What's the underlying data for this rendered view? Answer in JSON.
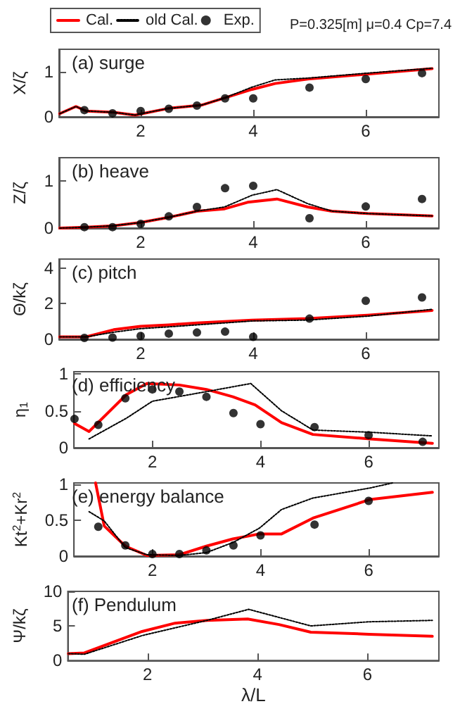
{
  "chart_data": [
    {
      "type": "line",
      "ylabel": "X/ζ",
      "annotations": [
        "(a) surge",
        "P=0.325[m] μ=0.4 Cp=7.4"
      ],
      "legend": "top left",
      "xlim": [
        0.55,
        7.3
      ],
      "xticks": [
        2,
        4,
        6
      ],
      "ylim": [
        0,
        1.5
      ],
      "yticks": [
        0,
        1
      ],
      "series": [
        {
          "name": "Cal.",
          "color": "#ff0000",
          "line_style": "solid",
          "x": [
            0.56,
            0.85,
            1.03,
            1.52,
            1.9,
            2.5,
            3.08,
            3.49,
            3.98,
            4.39,
            4.97,
            6.03,
            7.18
          ],
          "values": [
            0.07,
            0.23,
            0.13,
            0.1,
            0.04,
            0.19,
            0.26,
            0.42,
            0.61,
            0.74,
            0.84,
            0.95,
            1.07
          ]
        },
        {
          "name": "old Cal.",
          "color": "#000000",
          "line_style": "dotted",
          "x": [
            0.56,
            0.85,
            1.03,
            1.52,
            1.9,
            2.5,
            3.08,
            3.49,
            3.98,
            4.39,
            4.97,
            6.03,
            7.18
          ],
          "values": [
            0.07,
            0.23,
            0.13,
            0.1,
            0.04,
            0.19,
            0.26,
            0.42,
            0.66,
            0.82,
            0.86,
            0.97,
            1.08
          ]
        },
        {
          "name": "Exp.",
          "type": "scatter",
          "marker": "circle",
          "color": "#000000",
          "x": [
            1,
            1.5,
            2,
            2.5,
            3,
            3.5,
            4,
            5,
            6,
            7
          ],
          "values": [
            0.15,
            0.08,
            0.13,
            0.18,
            0.25,
            0.41,
            0.41,
            0.65,
            0.84,
            0.97
          ]
        }
      ]
    },
    {
      "type": "line",
      "ylabel": "Z/ζ",
      "annotations": [
        "(b) heave"
      ],
      "xlim": [
        0.55,
        7.3
      ],
      "xticks": [
        2,
        4,
        6
      ],
      "ylim": [
        0,
        1.5
      ],
      "yticks": [
        0,
        1
      ],
      "series": [
        {
          "color": "#ff0000",
          "line_style": "solid",
          "x": [
            0.56,
            1.03,
            1.52,
            2,
            2.5,
            3,
            3.49,
            3.9,
            4.42,
            4.97,
            5.4,
            6.03,
            7.18
          ],
          "values": [
            0,
            0.02,
            0.05,
            0.12,
            0.23,
            0.36,
            0.41,
            0.55,
            0.62,
            0.45,
            0.36,
            0.31,
            0.26
          ]
        },
        {
          "color": "#000000",
          "line_style": "dotted",
          "x": [
            0.56,
            1.03,
            1.52,
            2,
            2.5,
            3,
            3.49,
            3.98,
            4.42,
            4.97,
            5.4,
            6.03,
            7.18
          ],
          "values": [
            0,
            0.02,
            0.05,
            0.12,
            0.23,
            0.36,
            0.45,
            0.7,
            0.82,
            0.52,
            0.36,
            0.31,
            0.26
          ]
        },
        {
          "type": "scatter",
          "marker": "circle",
          "color": "#000000",
          "x": [
            1,
            1.5,
            2,
            2.5,
            3,
            3.5,
            4,
            5,
            6,
            7
          ],
          "values": [
            0.02,
            0.02,
            0.09,
            0.25,
            0.45,
            0.85,
            0.9,
            0.21,
            0.46,
            0.62
          ]
        }
      ]
    },
    {
      "type": "line",
      "ylabel": "Θ/kζ",
      "annotations": [
        "(c) pitch"
      ],
      "xlim": [
        0.55,
        7.3
      ],
      "xticks": [
        2,
        4,
        6
      ],
      "ylim": [
        0,
        4.5
      ],
      "yticks": [
        0,
        2,
        4
      ],
      "series": [
        {
          "color": "#ff0000",
          "line_style": "solid",
          "x": [
            0.56,
            1.03,
            1.52,
            2,
            2.5,
            3,
            3.98,
            4.97,
            6.03,
            7.18
          ],
          "values": [
            0.14,
            0.14,
            0.54,
            0.73,
            0.81,
            0.92,
            1.08,
            1.16,
            1.35,
            1.62
          ]
        },
        {
          "color": "#000000",
          "line_style": "dotted",
          "x": [
            0.56,
            1.03,
            1.52,
            2,
            2.5,
            3,
            3.98,
            4.97,
            6.03,
            7.18
          ],
          "values": [
            0.14,
            0.14,
            0.4,
            0.6,
            0.7,
            0.81,
            1.03,
            1.08,
            1.3,
            1.68
          ]
        },
        {
          "type": "scatter",
          "marker": "circle",
          "color": "#000000",
          "x": [
            1,
            1.5,
            2,
            2.5,
            3,
            3.5,
            4,
            5,
            6,
            7
          ],
          "values": [
            0.08,
            0.1,
            0.19,
            0.32,
            0.38,
            0.43,
            0.14,
            1.16,
            2.16,
            2.35
          ]
        }
      ]
    },
    {
      "type": "line",
      "ylabel": "η$_{1}$",
      "annotations": [
        "(d) efficiency"
      ],
      "xlim": [
        0.55,
        7.3
      ],
      "xticks": [
        2,
        4,
        6
      ],
      "ylim": [
        0,
        1.03
      ],
      "yticks": [
        0,
        0.5,
        1
      ],
      "series": [
        {
          "color": "#ff0000",
          "line_style": "solid",
          "x": [
            0.56,
            0.83,
            1.52,
            1.9,
            2.5,
            3,
            3.49,
            3.9,
            4.39,
            4.97,
            6.03,
            7.18
          ],
          "values": [
            0.33,
            0.22,
            0.72,
            0.87,
            0.85,
            0.79,
            0.69,
            0.58,
            0.34,
            0.18,
            0.12,
            0.06
          ]
        },
        {
          "color": "#000000",
          "line_style": "dotted",
          "x": [
            0.83,
            1.52,
            2,
            3,
            3.82,
            4.39,
            4.97,
            6.03,
            7.18
          ],
          "values": [
            0.12,
            0.4,
            0.63,
            0.76,
            0.87,
            0.5,
            0.24,
            0.21,
            0.16
          ]
        },
        {
          "type": "scatter",
          "marker": "circle",
          "color": "#000000",
          "x": [
            0.56,
            1,
            1.5,
            2,
            2.5,
            3,
            3.5,
            4,
            5,
            6,
            7
          ],
          "values": [
            0.39,
            0.31,
            0.67,
            0.79,
            0.76,
            0.69,
            0.47,
            0.32,
            0.28,
            0.17,
            0.08
          ]
        }
      ]
    },
    {
      "type": "line",
      "ylabel": "Kt$^{2}$+Kr$^{2}$",
      "annotations": [
        "(e) energy balance"
      ],
      "xlim": [
        0.55,
        7.3
      ],
      "xticks": [
        2,
        4,
        6
      ],
      "ylim": [
        0,
        1.02
      ],
      "yticks": [
        0,
        0.5,
        1
      ],
      "series": [
        {
          "color": "#ff0000",
          "line_style": "solid",
          "x": [
            0.95,
            1.11,
            1.5,
            1.9,
            2.5,
            3,
            3.49,
            3.98,
            4.39,
            4.97,
            6.03,
            7.18
          ],
          "values": [
            1.02,
            0.42,
            0.14,
            0.01,
            0.02,
            0.14,
            0.24,
            0.31,
            0.31,
            0.53,
            0.79,
            0.89
          ]
        },
        {
          "color": "#000000",
          "line_style": "dotted",
          "x": [
            0.83,
            1.11,
            1.5,
            1.9,
            2.5,
            3,
            3.49,
            3.98,
            4.39,
            4.97,
            6.03,
            6.44
          ],
          "values": [
            0.62,
            0.49,
            0.12,
            0.02,
            0.01,
            0.05,
            0.19,
            0.39,
            0.65,
            0.81,
            0.95,
            1.02
          ]
        },
        {
          "type": "scatter",
          "marker": "circle",
          "color": "#000000",
          "x": [
            1,
            1.5,
            2,
            2.5,
            3,
            3.5,
            4,
            5,
            6
          ],
          "values": [
            0.41,
            0.15,
            0.03,
            0.03,
            0.08,
            0.15,
            0.29,
            0.44,
            0.77
          ]
        }
      ]
    },
    {
      "type": "line",
      "ylabel": "Ψ/kζ",
      "xlabel": "λ/L",
      "annotations": [
        "(f) Pendulum"
      ],
      "xlim": [
        0.55,
        7.3
      ],
      "xticks": [
        2,
        4,
        6
      ],
      "ylim": [
        0,
        10
      ],
      "yticks": [
        0,
        5,
        10
      ],
      "series": [
        {
          "color": "#ff0000",
          "line_style": "solid",
          "x": [
            0.56,
            0.85,
            1.9,
            2.5,
            3.08,
            3.82,
            4.39,
            4.97,
            6.03,
            7.18
          ],
          "values": [
            1,
            1.1,
            4.2,
            5.4,
            5.8,
            6,
            5.2,
            4.1,
            3.8,
            3.5
          ]
        },
        {
          "color": "#000000",
          "line_style": "dotted",
          "x": [
            0.56,
            0.85,
            1.9,
            3.08,
            3.84,
            4.97,
            6.03,
            7.18
          ],
          "values": [
            1,
            0.9,
            3.6,
            5.8,
            7.4,
            5,
            5.6,
            5.8
          ]
        }
      ]
    }
  ]
}
